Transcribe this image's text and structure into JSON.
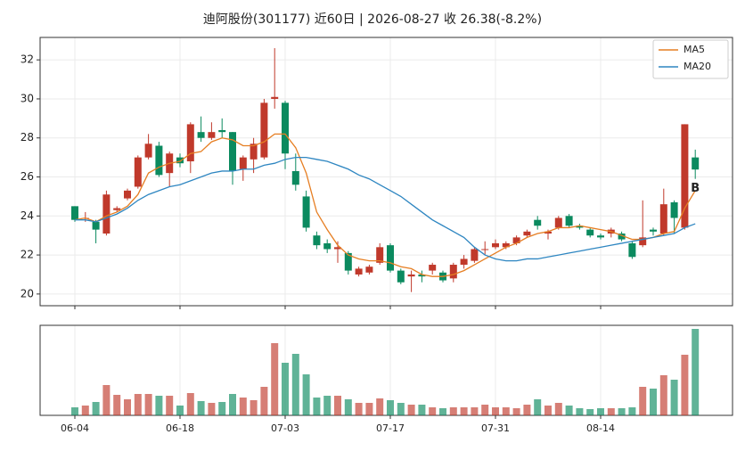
{
  "chart_data": {
    "type": "candlestick",
    "title": "迪阿股份(301177) 近60日  |  2026-08-27 收 26.38(-8.2%)",
    "categories": [
      "06-04",
      null,
      null,
      null,
      null,
      null,
      null,
      null,
      null,
      null,
      "06-18",
      null,
      null,
      null,
      null,
      null,
      null,
      null,
      null,
      null,
      "07-03",
      null,
      null,
      null,
      null,
      null,
      null,
      null,
      null,
      null,
      "07-17",
      null,
      null,
      null,
      null,
      null,
      null,
      null,
      null,
      null,
      "07-31",
      null,
      null,
      null,
      null,
      null,
      null,
      null,
      null,
      null,
      "08-14",
      null,
      null,
      null,
      null,
      null,
      null,
      null,
      null,
      null
    ],
    "open": [
      24.5,
      23.9,
      23.7,
      23.1,
      24.3,
      24.9,
      25.5,
      27.0,
      27.6,
      26.2,
      27.0,
      26.8,
      28.3,
      28.0,
      28.4,
      28.3,
      26.4,
      26.9,
      27.0,
      30.0,
      29.8,
      26.3,
      25.0,
      23.0,
      22.6,
      22.3,
      22.1,
      21.0,
      21.1,
      21.6,
      22.5,
      21.2,
      20.9,
      21.0,
      21.2,
      21.1,
      20.8,
      21.5,
      21.7,
      22.3,
      22.4,
      22.4,
      22.6,
      23.0,
      23.8,
      23.1,
      23.4,
      24.0,
      23.5,
      23.3,
      23.0,
      23.1,
      23.1,
      22.6,
      22.5,
      23.3,
      23.1,
      24.7,
      23.4,
      27.0
    ],
    "high": [
      24.5,
      24.2,
      23.8,
      25.3,
      24.5,
      25.4,
      27.1,
      28.2,
      27.8,
      27.3,
      27.2,
      28.8,
      29.1,
      28.8,
      29.0,
      28.3,
      27.1,
      28.0,
      30.0,
      32.6,
      29.9,
      27.2,
      25.3,
      23.2,
      22.8,
      22.7,
      22.2,
      21.4,
      21.5,
      22.6,
      22.6,
      21.3,
      21.2,
      21.2,
      21.6,
      21.2,
      21.6,
      22.0,
      22.4,
      22.7,
      22.8,
      22.7,
      23.0,
      23.3,
      24.0,
      23.3,
      24.0,
      24.1,
      23.6,
      23.4,
      23.1,
      23.4,
      23.2,
      22.7,
      24.8,
      23.4,
      25.4,
      24.8,
      28.7,
      27.4
    ],
    "low": [
      23.7,
      23.7,
      22.6,
      23.0,
      24.2,
      24.8,
      25.4,
      26.9,
      26.0,
      25.5,
      26.5,
      26.2,
      27.8,
      27.9,
      28.0,
      25.6,
      25.8,
      26.2,
      26.9,
      29.5,
      26.4,
      25.3,
      23.2,
      22.3,
      22.1,
      21.6,
      21.0,
      20.9,
      21.0,
      21.5,
      21.1,
      20.5,
      20.1,
      20.6,
      21.0,
      20.6,
      20.6,
      21.3,
      21.6,
      22.0,
      22.3,
      22.3,
      22.5,
      22.9,
      23.3,
      22.8,
      23.3,
      23.4,
      23.3,
      22.9,
      22.8,
      22.9,
      22.7,
      21.8,
      22.4,
      23.0,
      23.0,
      23.1,
      23.3,
      25.9
    ],
    "close": [
      23.8,
      23.9,
      23.3,
      25.1,
      24.4,
      25.3,
      27.0,
      27.7,
      26.1,
      27.2,
      26.7,
      28.7,
      28.0,
      28.3,
      28.3,
      26.3,
      27.0,
      27.7,
      29.8,
      30.1,
      27.2,
      25.6,
      23.4,
      22.5,
      22.3,
      22.4,
      21.2,
      21.3,
      21.4,
      22.4,
      21.2,
      20.6,
      21.0,
      20.9,
      21.5,
      20.7,
      21.5,
      21.8,
      22.3,
      22.3,
      22.6,
      22.6,
      22.9,
      23.2,
      23.5,
      23.2,
      23.9,
      23.5,
      23.4,
      23.0,
      22.9,
      23.3,
      22.8,
      21.9,
      22.9,
      23.2,
      24.6,
      23.9,
      28.7,
      26.38
    ],
    "volume": [
      9,
      11,
      15,
      34,
      23,
      18,
      24,
      24,
      22,
      22,
      11,
      25,
      16,
      14,
      15,
      24,
      20,
      17,
      32,
      81,
      59,
      69,
      46,
      20,
      22,
      22,
      18,
      14,
      14,
      19,
      17,
      14,
      12,
      12,
      9,
      8,
      9,
      9,
      9,
      12,
      9,
      9,
      8,
      12,
      18,
      11,
      14,
      11,
      8,
      7,
      8,
      8,
      8,
      9,
      32,
      30,
      45,
      40,
      68,
      97
    ],
    "up_color": "#c0392b",
    "down_color": "#0b8a5f",
    "series": [
      {
        "name": "MA5",
        "color": "#e67e22",
        "values": [
          23.8,
          23.9,
          23.7,
          24.0,
          24.2,
          24.5,
          25.1,
          26.2,
          26.5,
          26.7,
          26.8,
          27.2,
          27.3,
          27.8,
          28.0,
          27.9,
          27.6,
          27.6,
          27.8,
          28.2,
          28.2,
          27.5,
          26.2,
          24.2,
          23.3,
          22.5,
          22.0,
          21.8,
          21.7,
          21.7,
          21.6,
          21.4,
          21.3,
          21.0,
          20.9,
          20.9,
          21.0,
          21.2,
          21.5,
          21.8,
          22.1,
          22.4,
          22.6,
          22.9,
          23.1,
          23.2,
          23.4,
          23.4,
          23.5,
          23.4,
          23.3,
          23.2,
          23.0,
          22.8,
          22.8,
          22.9,
          23.1,
          23.2,
          24.4,
          25.3
        ]
      },
      {
        "name": "MA20",
        "color": "#2e86c1",
        "values": [
          23.8,
          23.8,
          23.7,
          23.9,
          24.1,
          24.4,
          24.8,
          25.1,
          25.3,
          25.5,
          25.6,
          25.8,
          26.0,
          26.2,
          26.3,
          26.3,
          26.4,
          26.4,
          26.6,
          26.7,
          26.9,
          27.0,
          27.0,
          26.9,
          26.8,
          26.6,
          26.4,
          26.1,
          25.9,
          25.6,
          25.3,
          25.0,
          24.6,
          24.2,
          23.8,
          23.5,
          23.2,
          22.9,
          22.4,
          22.0,
          21.8,
          21.7,
          21.7,
          21.8,
          21.8,
          21.9,
          22.0,
          22.1,
          22.2,
          22.3,
          22.4,
          22.5,
          22.6,
          22.7,
          22.8,
          22.9,
          23.0,
          23.1,
          23.4,
          23.6
        ]
      }
    ],
    "annotation": {
      "text": "B",
      "index": 59,
      "value": 25.4,
      "color": "#8e44ad"
    },
    "ylim": [
      19.4,
      33.15
    ],
    "yticks": [
      20,
      22,
      24,
      26,
      28,
      30,
      32
    ],
    "vlim": [
      0,
      101
    ],
    "grid": true,
    "legend": "upper right"
  }
}
